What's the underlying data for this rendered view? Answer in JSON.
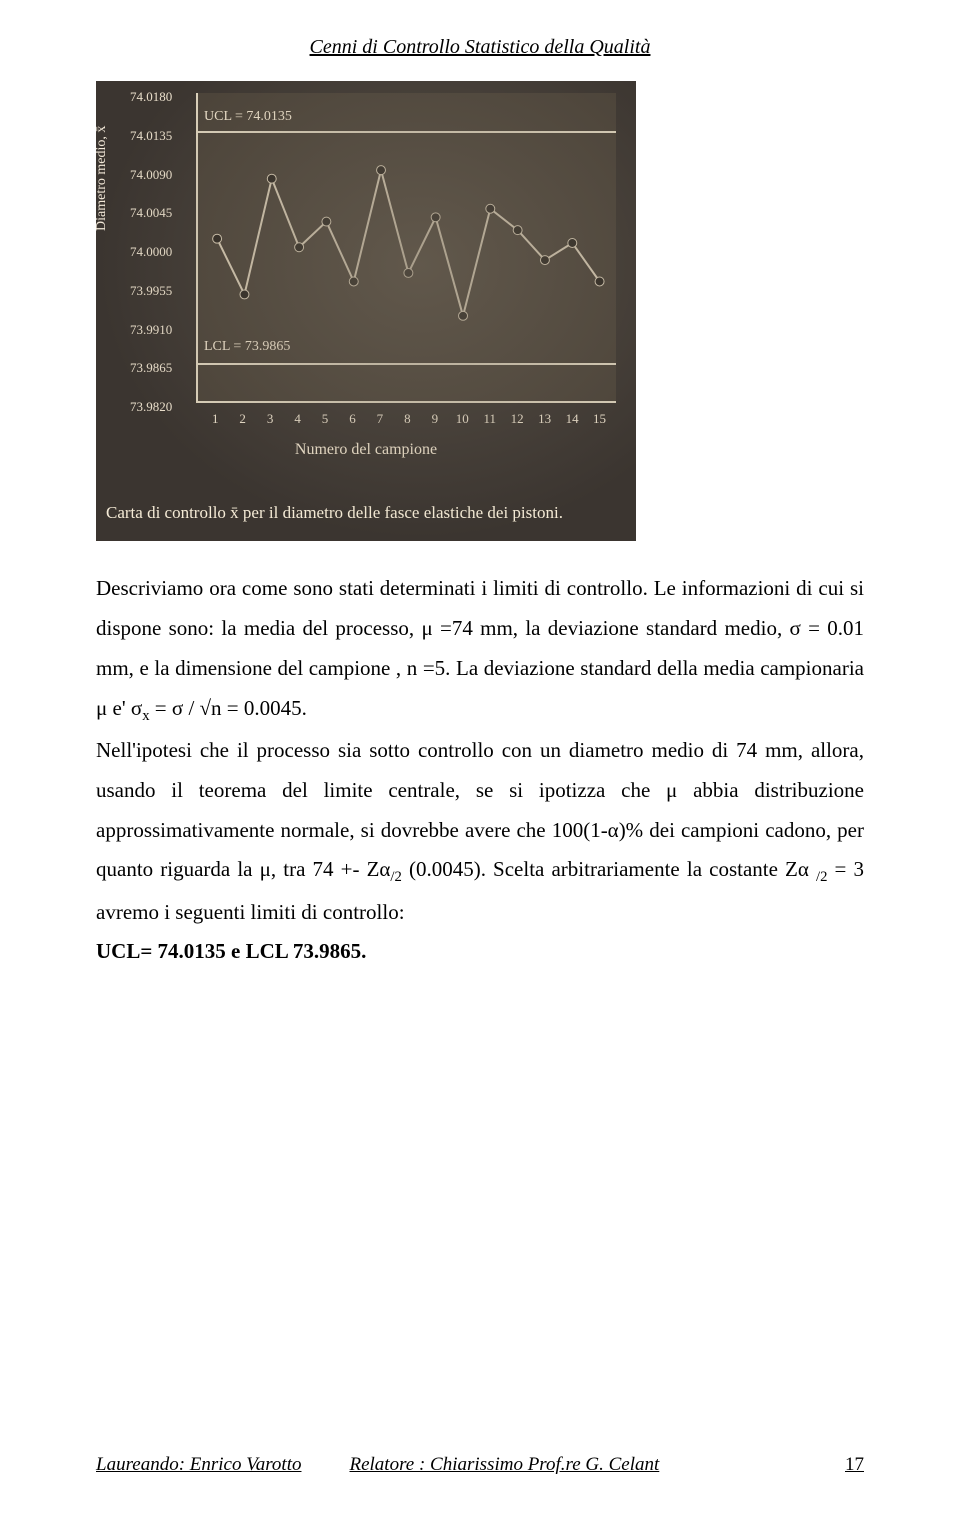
{
  "header": {
    "title": "Cenni di Controllo Statistico della Qualità"
  },
  "chart": {
    "type": "line",
    "background_color": "#3b3530",
    "plot_bg": "#4a4238",
    "axis_text_color": "#eadfcb",
    "line_color": "#d9cdb6",
    "point_color": "#2a251f",
    "yaxis_label": "Diametro medio, x̄",
    "yticks": [
      "74.0180",
      "74.0135",
      "74.0090",
      "74.0045",
      "74.0000",
      "73.9955",
      "73.9910",
      "73.9865",
      "73.9820"
    ],
    "ucl_label": "UCL = 74.0135",
    "lcl_label": "LCL = 73.9865",
    "xaxis_label": "Numero del campione",
    "xticks": [
      "1",
      "2",
      "3",
      "4",
      "5",
      "6",
      "7",
      "8",
      "9",
      "10",
      "11",
      "12",
      "13",
      "14",
      "15"
    ],
    "values": [
      74.001,
      73.9945,
      74.008,
      74.0,
      74.003,
      73.996,
      74.009,
      73.997,
      74.0035,
      73.992,
      74.0045,
      74.002,
      73.9985,
      74.0005,
      73.996
    ],
    "ylim": [
      73.982,
      74.018
    ],
    "caption": "Carta di controllo x̄ per il diametro delle fasce elastiche dei pistoni."
  },
  "body": {
    "p1a": "Descriviamo ora come sono stati determinati i limiti di controllo. Le informazioni di cui si dispone sono: la media del processo, μ =74 mm, la deviazione standard medio, σ = 0.01 mm, e la dimensione del campione , n =5. La deviazione standard della media campionaria μ e' σ",
    "p1_sub1": "x",
    "p1b": " = σ / √n = 0.0045.",
    "p2a": "Nell'ipotesi che il processo sia sotto controllo con un diametro medio di 74 mm, allora, usando il teorema del limite centrale, se si ipotizza che μ abbia distribuzione approssimativamente normale, si dovrebbe avere che 100(1-α)% dei campioni cadono, per quanto riguarda la μ, tra 74 +- Zα",
    "p2_sub1": "/2",
    "p2b": " (0.0045). Scelta arbitrariamente la costante Zα ",
    "p2_sub2": "/2",
    "p2c": " = 3 avremo i seguenti limiti di controllo:",
    "p3": "UCL= 74.0135 e LCL 73.9865."
  },
  "footer": {
    "laureando": "Laureando: Enrico Varotto",
    "relatore": "Relatore : Chiarissimo Prof.re G. Celant",
    "page": "17"
  }
}
